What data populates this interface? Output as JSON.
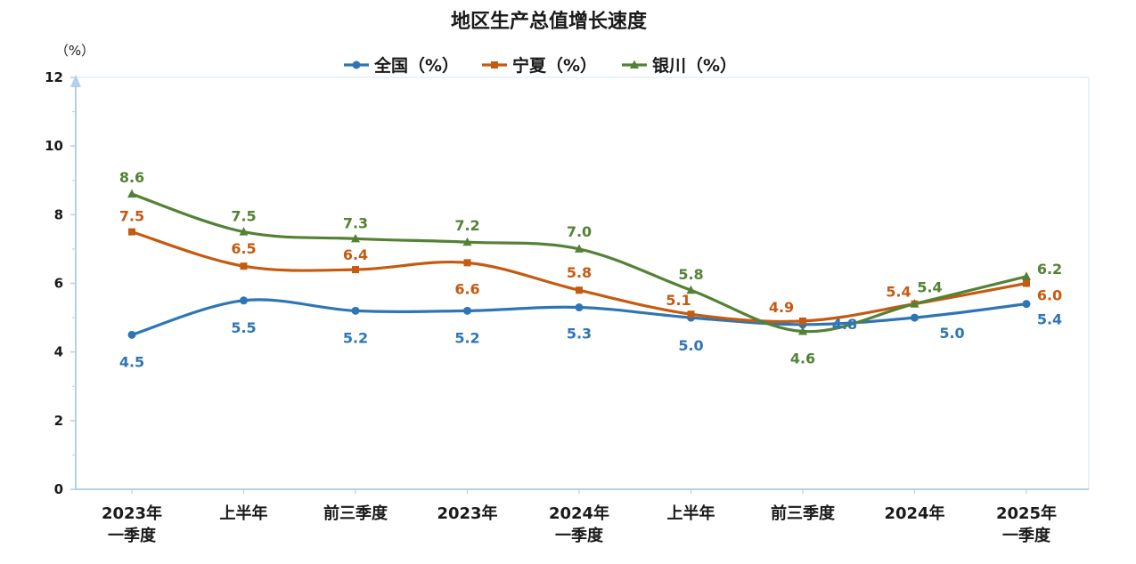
{
  "chart_data": {
    "type": "line",
    "title": "地区生产总值增长速度",
    "y_unit": "（%）",
    "ylim": [
      0,
      12
    ],
    "yticks": [
      "0",
      "2",
      "4",
      "6",
      "8",
      "10",
      "12"
    ],
    "categories": [
      [
        "2023年",
        "一季度"
      ],
      [
        "上半年"
      ],
      [
        "前三季度"
      ],
      [
        "2023年"
      ],
      [
        "2024年",
        "一季度"
      ],
      [
        "上半年"
      ],
      [
        "前三季度"
      ],
      [
        "2024年"
      ],
      [
        "2025年",
        "一季度"
      ]
    ],
    "legend_position": "top-center",
    "grid": false,
    "series": [
      {
        "name": "全国（%）",
        "color": "#2e75b6",
        "marker": "circle",
        "values": [
          4.5,
          5.5,
          5.2,
          5.2,
          5.3,
          5.0,
          4.8,
          5.0,
          5.4
        ],
        "labels": [
          "4.5",
          "5.5",
          "5.2",
          "5.2",
          "5.3",
          "5.0",
          "4.8",
          "5.0",
          "5.4"
        ]
      },
      {
        "name": "宁夏（%）",
        "color": "#c55a11",
        "marker": "square",
        "values": [
          7.5,
          6.5,
          6.4,
          6.6,
          5.8,
          5.1,
          4.9,
          5.4,
          6.0
        ],
        "labels": [
          "7.5",
          "6.5",
          "6.4",
          "6.6",
          "5.8",
          "5.1",
          "4.9",
          "5.4",
          "6.0"
        ]
      },
      {
        "name": "银川（%）",
        "color": "#548235",
        "marker": "triangle",
        "values": [
          8.6,
          7.5,
          7.3,
          7.2,
          7.0,
          5.8,
          4.6,
          5.4,
          6.2
        ],
        "labels": [
          "8.6",
          "7.5",
          "7.3",
          "7.2",
          "7.0",
          "5.8",
          "4.6",
          "5.4",
          "6.2"
        ]
      }
    ]
  }
}
